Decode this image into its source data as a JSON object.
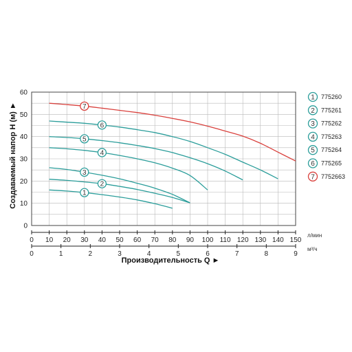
{
  "chart_data": {
    "type": "line",
    "x_label": "Производительность Q ►",
    "y_label": "Создаваемый напор H (м) ►",
    "x_unit_primary": "л/мин",
    "x_unit_secondary": "м³/ч",
    "xlim": [
      0,
      150
    ],
    "ylim": [
      0,
      60
    ],
    "x_ticks": [
      "0",
      "10",
      "20",
      "30",
      "40",
      "50",
      "60",
      "70",
      "80",
      "90",
      "100",
      "110",
      "120",
      "130",
      "140",
      "150"
    ],
    "x2_ticks": [
      "0",
      "1",
      "2",
      "3",
      "4",
      "5",
      "6",
      "7",
      "8",
      "9"
    ],
    "y_ticks": [
      "0",
      "10",
      "20",
      "30",
      "40",
      "50",
      "60"
    ],
    "grid": true,
    "legend_position": "right",
    "series": [
      {
        "name": "775260",
        "marker": "1",
        "color": "#2a9d9a",
        "marker_x": 30,
        "x": [
          10,
          20,
          30,
          40,
          50,
          60,
          70,
          80
        ],
        "y": [
          16,
          15.5,
          14.8,
          13.9,
          12.8,
          11.5,
          9.8,
          7.8
        ]
      },
      {
        "name": "775261",
        "marker": "2",
        "color": "#2a9d9a",
        "marker_x": 40,
        "x": [
          10,
          20,
          30,
          40,
          50,
          60,
          70,
          80,
          90
        ],
        "y": [
          20.8,
          20.3,
          19.6,
          18.8,
          17.6,
          16.2,
          14.5,
          12.6,
          10.2
        ]
      },
      {
        "name": "775262",
        "marker": "3",
        "color": "#2a9d9a",
        "marker_x": 30,
        "x": [
          10,
          20,
          30,
          40,
          50,
          60,
          70,
          80,
          90
        ],
        "y": [
          26,
          25.2,
          24,
          22.6,
          21,
          19,
          16.8,
          14,
          10.2
        ]
      },
      {
        "name": "775263",
        "marker": "4",
        "color": "#2a9d9a",
        "marker_x": 40,
        "x": [
          10,
          20,
          30,
          40,
          50,
          60,
          70,
          80,
          90,
          100
        ],
        "y": [
          35,
          34.5,
          33.8,
          32.8,
          31.5,
          30,
          28.2,
          25.8,
          22.5,
          16
        ]
      },
      {
        "name": "775264",
        "marker": "5",
        "color": "#2a9d9a",
        "marker_x": 30,
        "x": [
          10,
          20,
          30,
          40,
          50,
          60,
          70,
          80,
          90,
          100,
          110,
          120
        ],
        "y": [
          40,
          39.6,
          39,
          38.2,
          37.2,
          36,
          34.6,
          32.8,
          30.5,
          27.8,
          24.5,
          20.5
        ]
      },
      {
        "name": "775265",
        "marker": "6",
        "color": "#2a9d9a",
        "marker_x": 40,
        "x": [
          10,
          20,
          30,
          40,
          50,
          60,
          70,
          80,
          90,
          100,
          110,
          120,
          130,
          140
        ],
        "y": [
          47,
          46.5,
          46,
          45.2,
          44.3,
          43.1,
          41.8,
          40,
          37.8,
          35,
          32,
          28.5,
          25,
          21
        ]
      },
      {
        "name": "7752663",
        "marker": "7",
        "color": "#d9403c",
        "marker_x": 30,
        "x": [
          10,
          20,
          30,
          40,
          50,
          60,
          70,
          80,
          90,
          100,
          110,
          120,
          130,
          140,
          150
        ],
        "y": [
          55,
          54.4,
          53.7,
          52.8,
          51.8,
          50.8,
          49.6,
          48.2,
          46.6,
          44.7,
          42.5,
          40.2,
          37,
          33,
          29
        ]
      }
    ]
  }
}
